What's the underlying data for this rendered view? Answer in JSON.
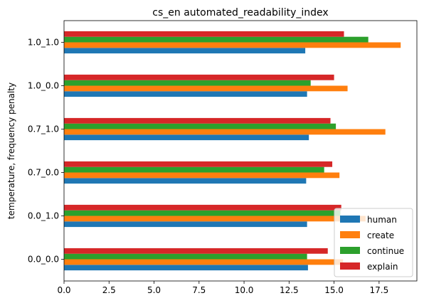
{
  "chart_data": {
    "type": "bar",
    "orientation": "horizontal",
    "title": "cs_en automated_readability_index",
    "xlabel": "",
    "ylabel": "temperature, frequency penalty",
    "categories": [
      "0.0_0.0",
      "0.0_1.0",
      "0.7_0.0",
      "0.7_1.0",
      "1.0_0.0",
      "1.0_1.0"
    ],
    "series": [
      {
        "name": "human",
        "color": "#1f77b4",
        "values": [
          13.55,
          13.5,
          13.45,
          13.6,
          13.5,
          13.4
        ]
      },
      {
        "name": "create",
        "color": "#ff7f0e",
        "values": [
          15.5,
          16.75,
          15.3,
          17.85,
          15.75,
          18.7
        ]
      },
      {
        "name": "continue",
        "color": "#2ca02c",
        "values": [
          13.5,
          15.35,
          14.45,
          15.1,
          13.7,
          16.9
        ]
      },
      {
        "name": "explain",
        "color": "#d62728",
        "values": [
          14.65,
          15.4,
          14.9,
          14.8,
          15.0,
          15.55
        ]
      }
    ],
    "xlim": [
      0,
      19.6
    ],
    "xticks": [
      0,
      2.5,
      5,
      7.5,
      10,
      12.5,
      15,
      17.5
    ],
    "xtick_labels": [
      "0.0",
      "2.5",
      "5.0",
      "7.5",
      "10.0",
      "12.5",
      "15.0",
      "17.5"
    ],
    "grid": false,
    "legend_position": "lower-right"
  }
}
